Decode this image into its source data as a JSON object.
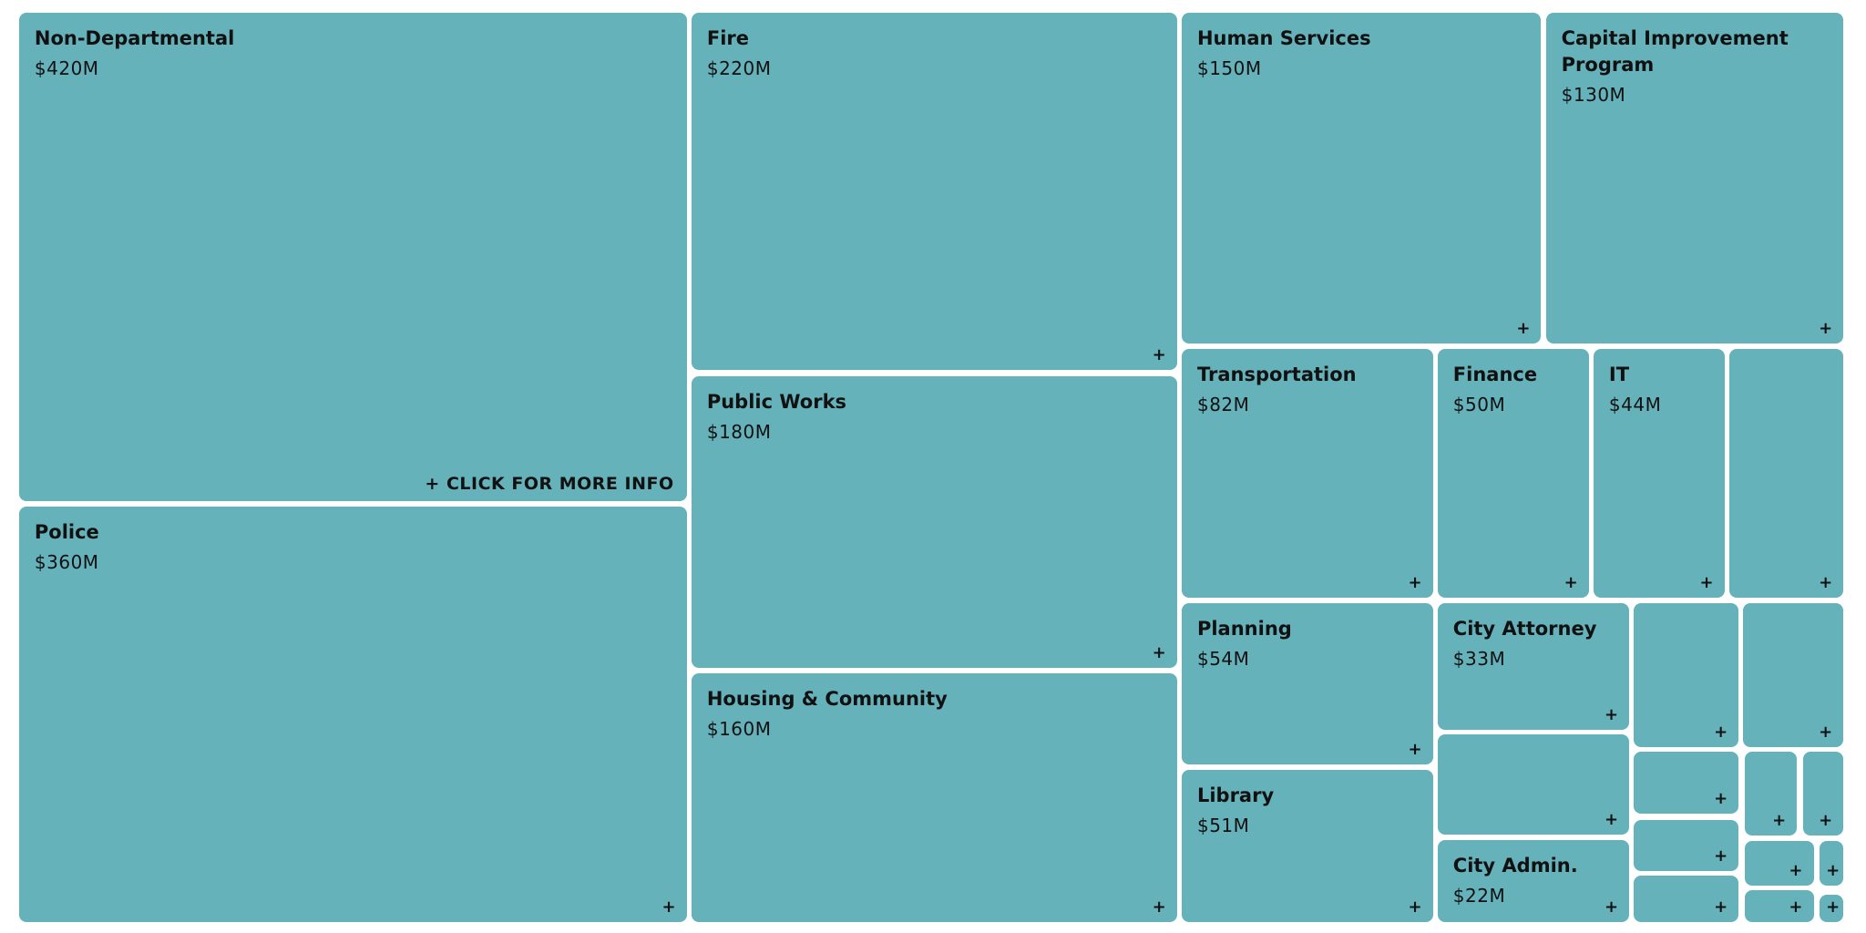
{
  "tiles": [
    {
      "name": "Non-Departmental",
      "amount": "$420M"
    },
    {
      "name": "Police",
      "amount": "$360M"
    },
    {
      "name": "Fire",
      "amount": "$220M"
    },
    {
      "name": "Public Works",
      "amount": "$180M"
    },
    {
      "name": "Housing & Community",
      "amount": "$160M"
    },
    {
      "name": "Human Services",
      "amount": "$150M"
    },
    {
      "name": "Capital Improvement Program",
      "amount": "$130M"
    },
    {
      "name": "Transportation",
      "amount": "$82M"
    },
    {
      "name": "Finance",
      "amount": "$50M"
    },
    {
      "name": "IT",
      "amount": "$44M"
    },
    {
      "name": "Planning",
      "amount": "$54M"
    },
    {
      "name": "Library",
      "amount": "$51M"
    },
    {
      "name": "City Attorney",
      "amount": "$33M"
    },
    {
      "name": "City Admin.",
      "amount": "$22M"
    }
  ],
  "click_hint": "+ CLICK FOR MORE INFO",
  "expand_icon": "+"
}
